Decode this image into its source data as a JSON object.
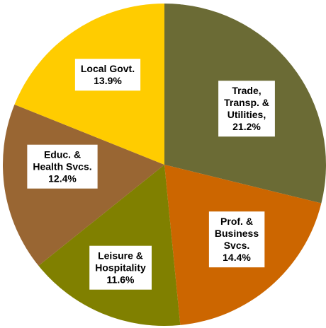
{
  "chart_data": {
    "type": "pie",
    "categories": [
      [
        "Trade,",
        "Transp. &",
        "Utilities,"
      ],
      [
        "Prof. &",
        "Business",
        "Svcs."
      ],
      [
        "Leisure &",
        "Hospitality"
      ],
      [
        "Educ. &",
        "Health Svcs."
      ],
      [
        "Local Govt."
      ]
    ],
    "values": [
      21.2,
      14.4,
      11.6,
      12.4,
      13.9
    ],
    "value_labels": [
      "21.2%",
      "14.4%",
      "11.6%",
      "12.4%",
      "13.9%"
    ],
    "colors": [
      "#6b6b35",
      "#cc6600",
      "#808000",
      "#996633",
      "#ffcc00"
    ]
  }
}
